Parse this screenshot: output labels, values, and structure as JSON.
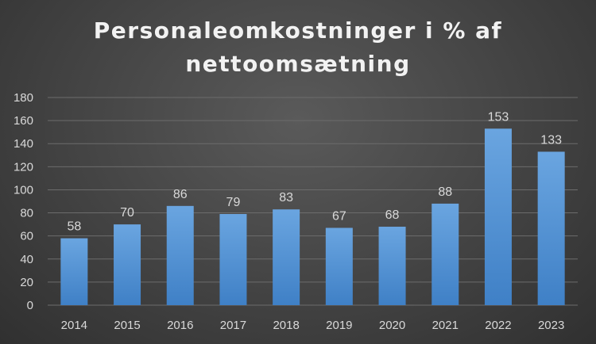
{
  "chart_data": {
    "type": "bar",
    "title": "Personaleomkostninger i % af nettoomsætning",
    "title_lines": [
      "Personaleomkostninger i % af",
      "nettoomsætning"
    ],
    "categories": [
      "2014",
      "2015",
      "2016",
      "2017",
      "2018",
      "2019",
      "2020",
      "2021",
      "2022",
      "2023"
    ],
    "values": [
      58,
      70,
      86,
      79,
      83,
      67,
      68,
      88,
      153,
      133
    ],
    "data_labels": [
      "58",
      "70",
      "86",
      "79",
      "83",
      "67",
      "68",
      "88",
      "153",
      "133"
    ],
    "y_ticks": [
      "0",
      "20",
      "40",
      "60",
      "80",
      "100",
      "120",
      "140",
      "160",
      "180"
    ],
    "ylim": [
      0,
      180
    ],
    "grid": true,
    "legend": "none",
    "colors": {
      "bar_top": "#6aa5e0",
      "bar_bottom": "#3f80c6",
      "gridline": "#6c6c6c",
      "text": "#d9d9d9",
      "title": "#f2f2f2"
    }
  }
}
